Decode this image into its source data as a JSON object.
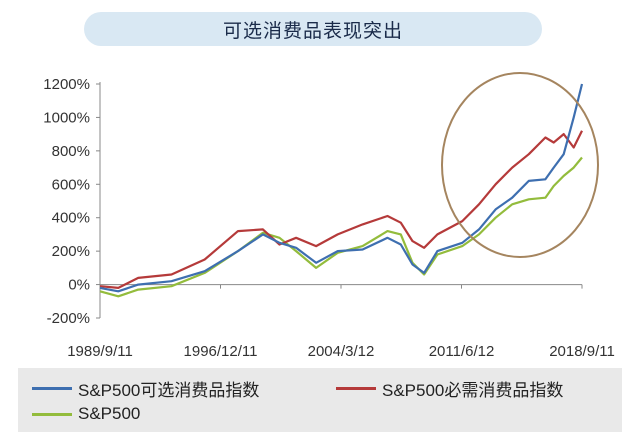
{
  "chart_data": {
    "type": "line",
    "title": "可选消费品表现突出",
    "y_tick_labels": [
      "1200%",
      "1000%",
      "800%",
      "600%",
      "400%",
      "200%",
      "0%",
      "-200%"
    ],
    "y_ticks": [
      1200,
      1000,
      800,
      600,
      400,
      200,
      0,
      -200
    ],
    "ylim": [
      -200,
      1200
    ],
    "x_tick_labels": [
      "1989/9/11",
      "1996/12/11",
      "2004/3/12",
      "2011/6/12",
      "2018/9/11"
    ],
    "x_ticks": [
      1989.7,
      1996.95,
      2004.2,
      2011.45,
      2018.7
    ],
    "xlim": [
      1989.7,
      2018.7
    ],
    "series": [
      {
        "name": "S&P500可选消费品指数",
        "color": "#3e6fb0",
        "x": [
          1989.7,
          1990.8,
          1992,
          1994,
          1996,
          1998,
          1999.5,
          2000.5,
          2001.5,
          2002.7,
          2004,
          2005.5,
          2007,
          2007.8,
          2008.5,
          2009.2,
          2010,
          2011.5,
          2012.5,
          2013.5,
          2014.5,
          2015.5,
          2016.5,
          2017,
          2017.6,
          2018.2,
          2018.7
        ],
        "y": [
          -20,
          -40,
          0,
          20,
          80,
          200,
          300,
          250,
          220,
          130,
          200,
          210,
          280,
          240,
          120,
          70,
          200,
          250,
          330,
          450,
          520,
          620,
          630,
          700,
          780,
          1000,
          1200
        ]
      },
      {
        "name": "S&P500必需消费品指数",
        "color": "#b53a3a",
        "x": [
          1989.7,
          1990.8,
          1992,
          1994,
          1996,
          1998,
          1999.5,
          2000.5,
          2001.5,
          2002.7,
          2004,
          2005.5,
          2007,
          2007.8,
          2008.5,
          2009.2,
          2010,
          2011.5,
          2012.5,
          2013.5,
          2014.5,
          2015.5,
          2016.5,
          2017,
          2017.6,
          2018.2,
          2018.7
        ],
        "y": [
          -10,
          -20,
          40,
          60,
          150,
          320,
          330,
          240,
          280,
          230,
          300,
          360,
          410,
          370,
          260,
          220,
          300,
          380,
          480,
          600,
          700,
          780,
          880,
          850,
          900,
          820,
          920
        ]
      },
      {
        "name": "S&P500",
        "color": "#93bc3c",
        "x": [
          1989.7,
          1990.8,
          1992,
          1994,
          1996,
          1998,
          1999.5,
          2000.5,
          2001.5,
          2002.7,
          2004,
          2005.5,
          2007,
          2007.8,
          2008.5,
          2009.2,
          2010,
          2011.5,
          2012.5,
          2013.5,
          2014.5,
          2015.5,
          2016.5,
          2017,
          2017.6,
          2018.2,
          2018.7
        ],
        "y": [
          -40,
          -70,
          -30,
          -10,
          70,
          200,
          310,
          280,
          200,
          100,
          190,
          230,
          320,
          300,
          130,
          60,
          180,
          230,
          300,
          400,
          480,
          510,
          520,
          590,
          650,
          700,
          760
        ]
      }
    ],
    "legend": "bottom",
    "grid": false
  }
}
